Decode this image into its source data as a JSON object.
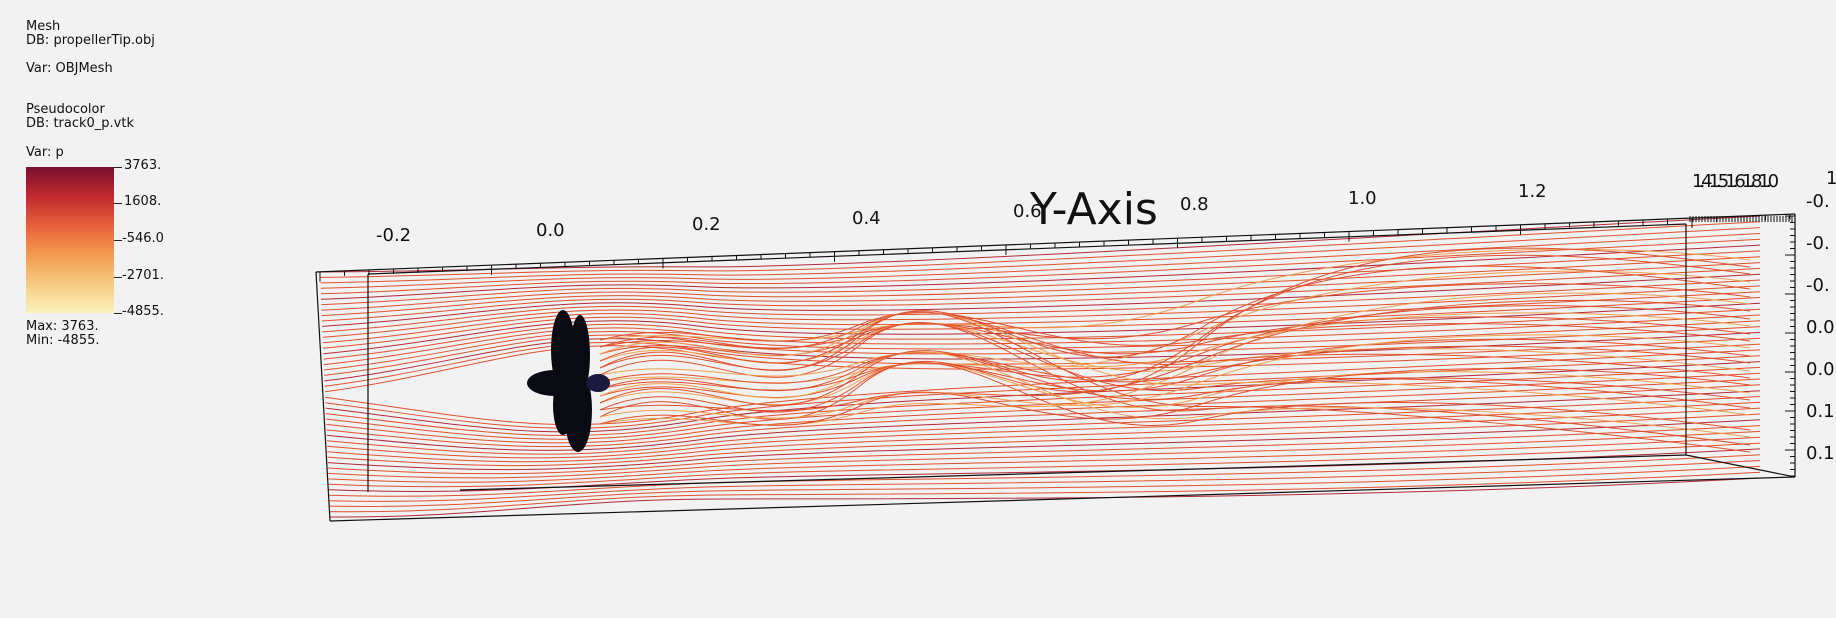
{
  "mesh_legend": {
    "plot_type": "Mesh",
    "db": "DB: propellerTip.obj",
    "var": "Var: OBJMesh"
  },
  "pseudocolor_legend": {
    "plot_type": "Pseudocolor",
    "db": "DB: track0_p.vtk",
    "var": "Var: p",
    "tick_labels": [
      "3763.",
      "1608.",
      "-546.0",
      "-2701.",
      "-4855."
    ],
    "max": "Max:  3763.",
    "min": "Min: -4855.",
    "colors": [
      "#7a1030",
      "#c1282e",
      "#e8603a",
      "#f29a50",
      "#f7cf87",
      "#faf2bb"
    ]
  },
  "axes": {
    "y_axis_title": "Y-Axis",
    "y_ticks": [
      "-0.2",
      "0.0",
      "0.2",
      "0.4",
      "0.6",
      "0.8",
      "1.0",
      "1.2"
    ],
    "y_end_overlap": "1.41.51.61.81.0",
    "right_ticks": [
      "-0.",
      "-0.",
      "-0.",
      "0.0",
      "0.0",
      "0.1",
      "0.1"
    ],
    "corner_tick": "1"
  },
  "colors": {
    "background": "#f2f2f2",
    "streamline_main": "#e0502e",
    "streamline_light": "#f0a050",
    "streamline_dark": "#b02a3a",
    "mesh": "#111111"
  }
}
